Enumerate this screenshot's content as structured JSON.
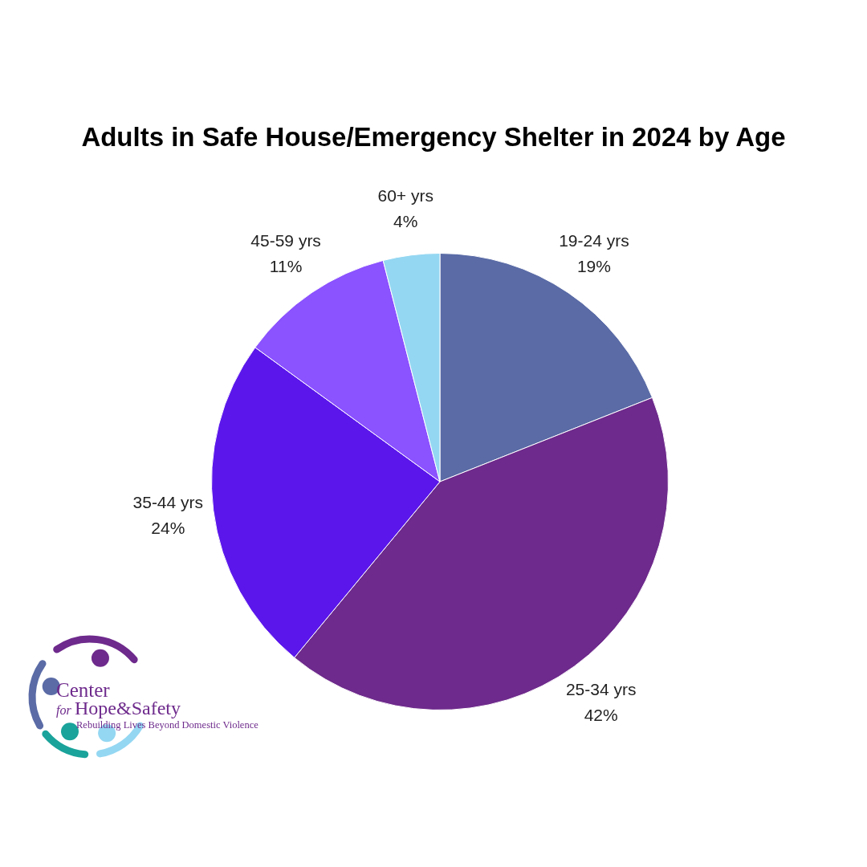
{
  "chart_data": {
    "type": "pie",
    "title": "Adults in Safe House/Emergency Shelter in 2024 by Age",
    "categories": [
      "19-24 yrs",
      "25-34 yrs",
      "35-44 yrs",
      "45-59 yrs",
      "60+ yrs"
    ],
    "values": [
      19,
      42,
      24,
      11,
      4
    ],
    "value_labels": [
      "19%",
      "42%",
      "24%",
      "11%",
      "4%"
    ],
    "colors": [
      "#5a6ba6",
      "#6e2a8c",
      "#5b17eb",
      "#8b52ff",
      "#94d7f2"
    ],
    "data_labels": true
  },
  "logo": {
    "name_lines": [
      "Center",
      "for",
      "Hope&Safety"
    ],
    "tagline": "Rebuilding Lives Beyond Domestic Violence"
  }
}
